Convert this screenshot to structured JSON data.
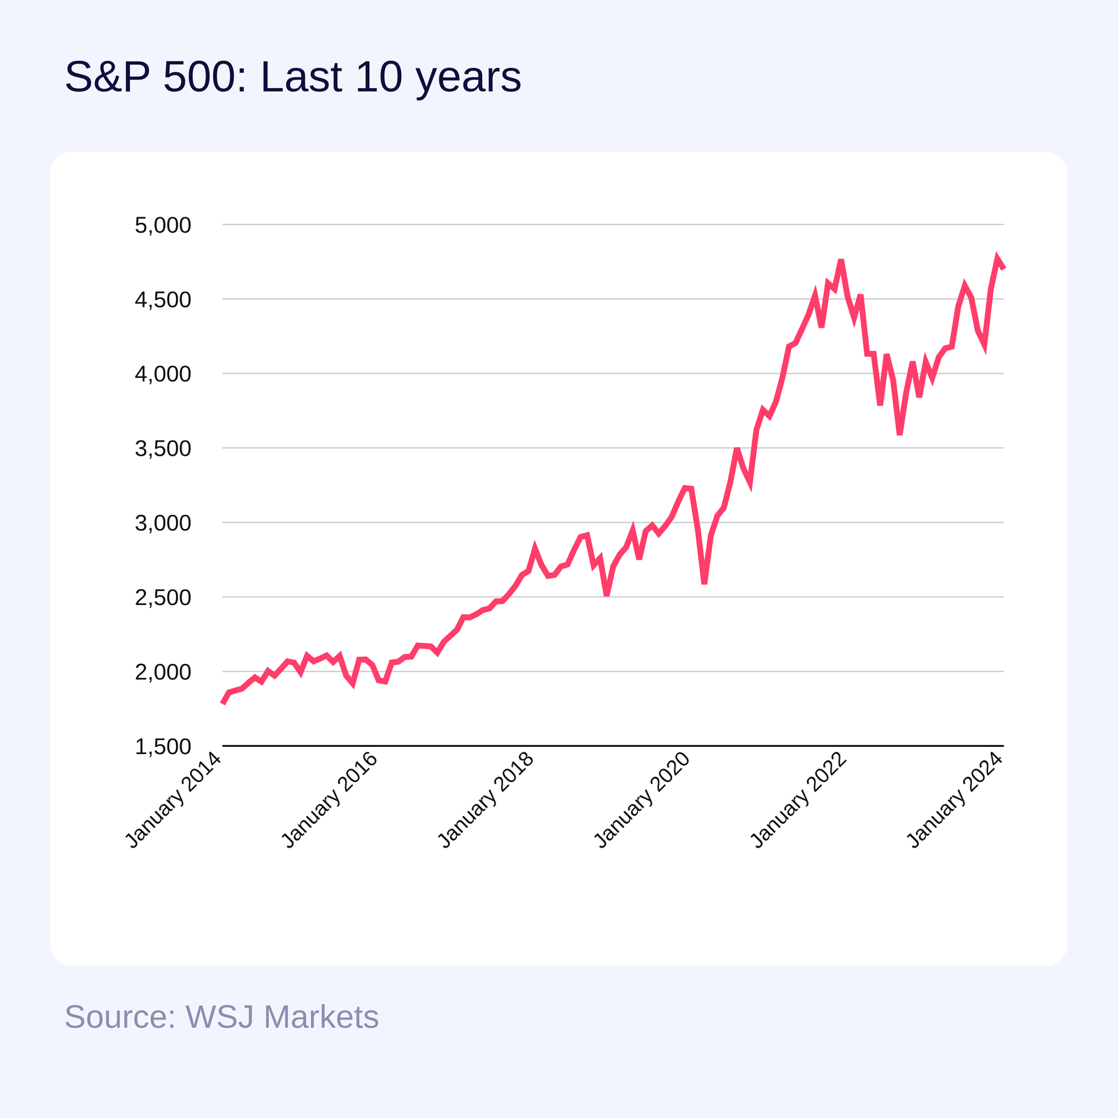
{
  "chart_data": {
    "type": "line",
    "title": "S&P 500: Last 10 years",
    "source": "Source: WSJ Markets",
    "color": "#ff3d6a",
    "grid": true,
    "ylim": [
      1500,
      5000
    ],
    "yticks": [
      {
        "value": 1500,
        "label": "1,500"
      },
      {
        "value": 2000,
        "label": "2,000"
      },
      {
        "value": 2500,
        "label": "2,500"
      },
      {
        "value": 3000,
        "label": "3,000"
      },
      {
        "value": 3500,
        "label": "3,500"
      },
      {
        "value": 4000,
        "label": "4,000"
      },
      {
        "value": 4500,
        "label": "4,500"
      },
      {
        "value": 5000,
        "label": "5,000"
      }
    ],
    "categories": [
      "January 2014",
      null,
      null,
      null,
      null,
      null,
      null,
      null,
      null,
      null,
      null,
      null,
      null,
      null,
      null,
      null,
      null,
      null,
      null,
      null,
      null,
      null,
      null,
      null,
      "January 2016",
      null,
      null,
      null,
      null,
      null,
      null,
      null,
      null,
      null,
      null,
      null,
      null,
      null,
      null,
      null,
      null,
      null,
      null,
      null,
      null,
      null,
      null,
      null,
      "January 2018",
      null,
      null,
      null,
      null,
      null,
      null,
      null,
      null,
      null,
      null,
      null,
      null,
      null,
      null,
      null,
      null,
      null,
      null,
      null,
      null,
      null,
      null,
      null,
      "January 2020",
      null,
      null,
      null,
      null,
      null,
      null,
      null,
      null,
      null,
      null,
      null,
      null,
      null,
      null,
      null,
      null,
      null,
      null,
      null,
      null,
      null,
      null,
      null,
      "January 2022",
      null,
      null,
      null,
      null,
      null,
      null,
      null,
      null,
      null,
      null,
      null,
      null,
      null,
      null,
      null,
      null,
      null,
      null,
      null,
      null,
      null,
      null,
      null,
      "January 2024"
    ],
    "values": [
      1782,
      1859,
      1872,
      1884,
      1924,
      1960,
      1931,
      2003,
      1972,
      2018,
      2068,
      2059,
      1995,
      2105,
      2068,
      2086,
      2107,
      2063,
      2104,
      1972,
      1920,
      2079,
      2080,
      2044,
      1940,
      1932,
      2060,
      2065,
      2097,
      2099,
      2174,
      2171,
      2168,
      2126,
      2199,
      2239,
      2279,
      2364,
      2363,
      2384,
      2412,
      2423,
      2470,
      2472,
      2519,
      2575,
      2648,
      2674,
      2824,
      2714,
      2641,
      2648,
      2705,
      2718,
      2816,
      2902,
      2914,
      2712,
      2760,
      2507,
      2704,
      2784,
      2834,
      2946,
      2752,
      2942,
      2980,
      2926,
      2977,
      3038,
      3141,
      3231,
      3226,
      2954,
      2585,
      2912,
      3044,
      3100,
      3271,
      3500,
      3363,
      3270,
      3622,
      3756,
      3714,
      3811,
      3973,
      4181,
      4204,
      4298,
      4395,
      4523,
      4308,
      4605,
      4567,
      4766,
      4516,
      4374,
      4530,
      4132,
      4132,
      3785,
      4130,
      3955,
      3586,
      3872,
      4080,
      3840,
      4077,
      3970,
      4109,
      4169,
      4180,
      4450,
      4589,
      4508,
      4288,
      4194,
      4568,
      4770,
      4700
    ]
  }
}
